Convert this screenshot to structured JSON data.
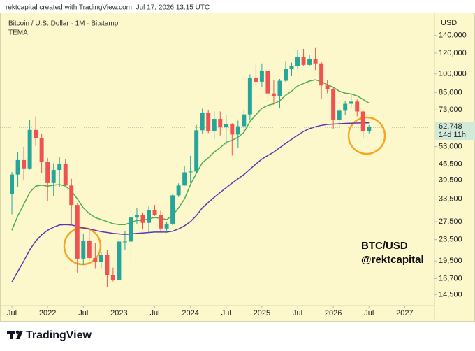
{
  "header": {
    "caption": "rektcapital created with TradingView.com, Jul 17, 2026 13:15 UTC"
  },
  "footer": {
    "brand": "TradingView"
  },
  "chart_data": {
    "type": "candlestick",
    "title": "Bitcoin / U.S. Dollar · 1M · Bitstamp",
    "indicator": "TEMA",
    "currency": "USD",
    "watermark": [
      "BTC/USD",
      "@rektcapital"
    ],
    "log_scale": true,
    "grid": false,
    "up_color": "#26a69a",
    "down_color": "#ef5350",
    "x": [
      "2021-07",
      "2021-08",
      "2021-09",
      "2021-10",
      "2021-11",
      "2021-12",
      "2022-01",
      "2022-02",
      "2022-03",
      "2022-04",
      "2022-05",
      "2022-06",
      "2022-07",
      "2022-08",
      "2022-09",
      "2022-10",
      "2022-11",
      "2022-12",
      "2023-01",
      "2023-02",
      "2023-03",
      "2023-04",
      "2023-05",
      "2023-06",
      "2023-07",
      "2023-08",
      "2023-09",
      "2023-10",
      "2023-11",
      "2023-12",
      "2024-01",
      "2024-02",
      "2024-03",
      "2024-04",
      "2024-05",
      "2024-06",
      "2024-07",
      "2024-08",
      "2024-09",
      "2024-10",
      "2024-11",
      "2024-12",
      "2025-01",
      "2025-02",
      "2025-03",
      "2025-04",
      "2025-05",
      "2025-06",
      "2025-07",
      "2025-08",
      "2025-09",
      "2025-10",
      "2025-11",
      "2025-12",
      "2026-01",
      "2026-02",
      "2026-03",
      "2026-04",
      "2026-05",
      "2026-06",
      "2026-07"
    ],
    "open": [
      35000,
      41500,
      47100,
      43800,
      61300,
      57000,
      46300,
      38500,
      43200,
      45500,
      37700,
      31800,
      19900,
      23300,
      20000,
      19400,
      20500,
      17200,
      16500,
      23100,
      23100,
      28500,
      29200,
      27200,
      30500,
      29200,
      25900,
      27000,
      34600,
      37700,
      42300,
      42600,
      61100,
      71300,
      60600,
      67500,
      62700,
      64600,
      58900,
      63300,
      70200,
      96400,
      93400,
      102400,
      84300,
      82500,
      94200,
      104600,
      107100,
      115700,
      108200,
      114000,
      109600,
      90400,
      87500,
      67000,
      72500,
      77000,
      78500,
      72000,
      60500
    ],
    "high": [
      42400,
      50500,
      52900,
      67000,
      69000,
      59100,
      48000,
      45800,
      48200,
      47400,
      40000,
      32400,
      24700,
      25200,
      22800,
      21100,
      21500,
      18400,
      23900,
      25300,
      29200,
      31000,
      29800,
      31400,
      31800,
      30200,
      27500,
      35200,
      38400,
      44700,
      48900,
      64000,
      73800,
      72700,
      72000,
      72000,
      70000,
      65000,
      66500,
      73600,
      99600,
      108300,
      109600,
      102500,
      95000,
      95700,
      111900,
      110500,
      123200,
      124500,
      117900,
      126200,
      111000,
      94500,
      89000,
      74000,
      79000,
      84000,
      80000,
      73000,
      64000
    ],
    "low": [
      29300,
      37300,
      39600,
      43300,
      53300,
      42000,
      32900,
      34300,
      37200,
      37700,
      26700,
      17600,
      18800,
      19600,
      18200,
      18200,
      15500,
      16300,
      16500,
      21400,
      19600,
      26900,
      25800,
      24800,
      28900,
      25200,
      24900,
      26600,
      34100,
      37600,
      38500,
      41900,
      59100,
      59600,
      56500,
      58400,
      53500,
      49000,
      52500,
      58900,
      66800,
      90500,
      89200,
      78200,
      76600,
      74400,
      93300,
      98200,
      105100,
      107300,
      107300,
      103500,
      80600,
      84400,
      62000,
      63000,
      70000,
      74000,
      69000,
      57000,
      59500
    ],
    "close": [
      41500,
      47100,
      43800,
      61300,
      57000,
      46300,
      38500,
      43200,
      45500,
      37700,
      31800,
      19900,
      23300,
      20000,
      19400,
      20500,
      17200,
      16500,
      23100,
      23100,
      28500,
      29200,
      27200,
      30500,
      29200,
      25900,
      27000,
      34600,
      37700,
      42300,
      42600,
      61100,
      71300,
      60600,
      67500,
      62700,
      64600,
      58900,
      63300,
      70200,
      96400,
      93400,
      102400,
      84300,
      82500,
      94200,
      104600,
      107100,
      115700,
      108200,
      114000,
      109600,
      90400,
      87500,
      67000,
      72500,
      77000,
      78500,
      72000,
      60500,
      62748
    ],
    "lines": [
      {
        "color": "#4caf50",
        "values": [
          25500,
          29000,
          32000,
          35500,
          37500,
          37800,
          37500,
          37800,
          38000,
          37500,
          36000,
          33500,
          31000,
          29500,
          28500,
          28000,
          27500,
          27000,
          26800,
          26800,
          27300,
          27800,
          27800,
          28200,
          28500,
          28300,
          28000,
          29000,
          31000,
          33500,
          38000,
          42000,
          46000,
          48000,
          50500,
          52500,
          55000,
          56000,
          57500,
          60000,
          66000,
          70000,
          74000,
          76000,
          77000,
          79000,
          83000,
          86000,
          90000,
          92000,
          94000,
          95000,
          93500,
          91000,
          89000,
          86000,
          84500,
          84000,
          82500,
          80000,
          77500
        ]
      },
      {
        "color": "#5e35b1",
        "values": [
          16200,
          17800,
          19500,
          21500,
          23200,
          24500,
          25500,
          26200,
          26700,
          26800,
          26700,
          26400,
          26000,
          25800,
          25500,
          25200,
          25000,
          24800,
          24700,
          24600,
          24700,
          24800,
          24900,
          25000,
          25100,
          25100,
          25100,
          25300,
          25800,
          26500,
          27500,
          29000,
          31000,
          32500,
          34000,
          35500,
          37000,
          38500,
          40000,
          41500,
          43500,
          45500,
          47500,
          49000,
          50500,
          52500,
          54500,
          56500,
          58500,
          60500,
          62000,
          63000,
          63800,
          64300,
          64500,
          64700,
          64900,
          65000,
          65100,
          65200,
          65200
        ]
      }
    ],
    "last_price": {
      "value": 62748,
      "label": "62,748"
    },
    "countdown": "14d 11h",
    "xlim": [
      "2021-05",
      "2027-06"
    ],
    "xticks": [
      {
        "value": "2021-07",
        "label": "Jul"
      },
      {
        "value": "2022-01",
        "label": "2022"
      },
      {
        "value": "2022-07",
        "label": "Jul"
      },
      {
        "value": "2023-01",
        "label": "2023"
      },
      {
        "value": "2023-07",
        "label": "Jul"
      },
      {
        "value": "2024-01",
        "label": "2024"
      },
      {
        "value": "2024-07",
        "label": "Jul"
      },
      {
        "value": "2025-01",
        "label": "2025"
      },
      {
        "value": "2025-07",
        "label": "Jul"
      },
      {
        "value": "2026-01",
        "label": "2026"
      },
      {
        "value": "2026-07",
        "label": "Jul"
      },
      {
        "value": "2027-01",
        "label": "2027"
      }
    ],
    "ylim": [
      13200,
      171000
    ],
    "yticks": [
      {
        "value": 140000,
        "label": "140,000"
      },
      {
        "value": 120000,
        "label": "120,000"
      },
      {
        "value": 100000,
        "label": "100,000"
      },
      {
        "value": 85000,
        "label": "85,000"
      },
      {
        "value": 73000,
        "label": "73,000"
      },
      {
        "value": 53000,
        "label": "53,000"
      },
      {
        "value": 45500,
        "label": "45,500"
      },
      {
        "value": 39500,
        "label": "39,500"
      },
      {
        "value": 33500,
        "label": "33,500"
      },
      {
        "value": 27500,
        "label": "27,500"
      },
      {
        "value": 23500,
        "label": "23,500"
      },
      {
        "value": 19500,
        "label": "19,500"
      },
      {
        "value": 16700,
        "label": "16,700"
      },
      {
        "value": 14500,
        "label": "14,500"
      }
    ]
  }
}
